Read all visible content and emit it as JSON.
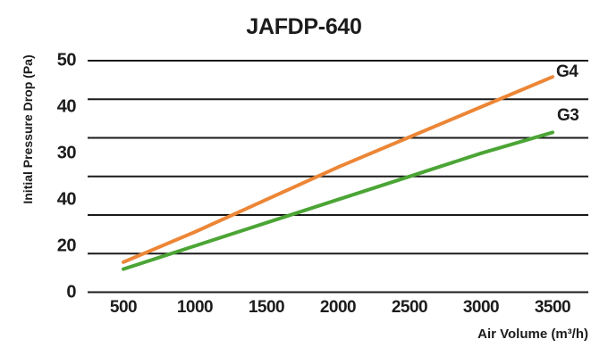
{
  "chart_data": {
    "type": "line",
    "title": "JAFDP-640",
    "xlabel": "Air Volume (m³/h)",
    "ylabel": "Initial Pressure Drop (Pa)",
    "categories": [
      500,
      1000,
      1500,
      2000,
      2500,
      3000,
      3500
    ],
    "x_tick_labels": [
      "500",
      "1000",
      "1500",
      "2000",
      "2500",
      "3000",
      "3500"
    ],
    "y_tick_labels_as_shown": [
      "50",
      "40",
      "30",
      "40",
      "20",
      "0"
    ],
    "ylim": [
      0,
      50
    ],
    "gridline_count": 7,
    "grid": "horizontal-only",
    "legend_position": "labels-at-line-ends",
    "series": [
      {
        "name": "G4",
        "color": "#EC8636",
        "values": [
          6.5,
          13,
          20,
          27,
          33.5,
          40,
          46.5
        ]
      },
      {
        "name": "G3",
        "color": "#4BA535",
        "values": [
          5,
          10,
          15,
          20,
          25,
          30,
          34.5
        ]
      }
    ],
    "text_color": "#1c1c1c",
    "gridline_color": "#1a1a1a"
  }
}
